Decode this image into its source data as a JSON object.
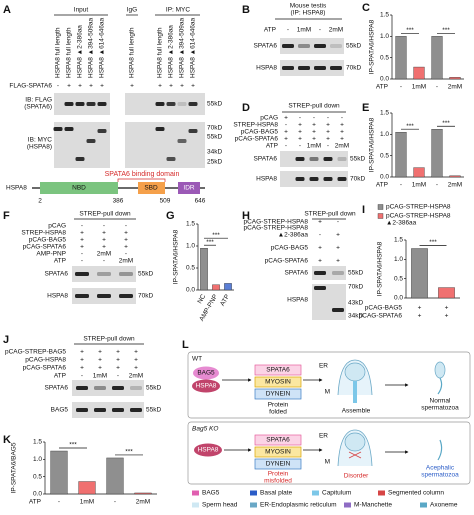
{
  "figure": {
    "A": {
      "label": "A",
      "input": "Input",
      "igg": "IgG",
      "ip": "IP: MYC",
      "lanes": [
        "HSPA8 full length",
        "HSPA8 full length",
        "HSPA8 ▲2-386aa",
        "HSPA8 ▲394-509aa",
        "HSPA8 ▲614-646aa",
        "HSPA8 full length",
        "HSPA8 full length",
        "HSPA8 ▲2-386aa",
        "HSPA8 ▲394-509aa",
        "HSPA8 ▲614-646aa"
      ],
      "rows": [
        {
          "label": "FLAG-SPATA6",
          "cells": [
            "-",
            "+",
            "+",
            "+",
            "+",
            "+",
            "+",
            "+",
            "+",
            "+"
          ]
        }
      ],
      "ib_flag": [
        "IB: FLAG",
        "(SPATA6)"
      ],
      "ib_myc": [
        "IB: MYC",
        "(HSPA8)"
      ],
      "markers_top": [
        "55kD"
      ],
      "markers_bottom": [
        "70kD",
        "55kD",
        "34kD",
        "25kD"
      ],
      "domain": {
        "title": "SPATA6 binding domain",
        "protein": "HSPA8",
        "parts": [
          "NBD",
          "SBD",
          "IDR"
        ],
        "positions": [
          2,
          386,
          509,
          646
        ]
      }
    },
    "B": {
      "label": "B",
      "title": [
        "Mouse testis",
        "(IP: HSPA8)"
      ],
      "rows": [
        {
          "label": "ATP",
          "cells": [
            "-",
            "1mM",
            "-",
            "2mM"
          ]
        }
      ],
      "blots": [
        "SPATA6",
        "HSPA8"
      ],
      "markers": [
        "55kD",
        "70kD"
      ]
    },
    "D": {
      "label": "D",
      "title": "STREP-pull down",
      "rows": [
        {
          "label": "pCAG",
          "cells": [
            "+",
            "-",
            "-",
            "-",
            "-"
          ]
        },
        {
          "label": "STREP-HSPA8",
          "cells": [
            "-",
            "+",
            "+",
            "+",
            "+"
          ]
        },
        {
          "label": "pCAG-BAG5",
          "cells": [
            "+",
            "+",
            "+",
            "+",
            "+"
          ]
        },
        {
          "label": "pCAG-SPATA6",
          "cells": [
            "+",
            "+",
            "+",
            "+",
            "+"
          ]
        },
        {
          "label": "ATP",
          "cells": [
            "-",
            "-",
            "1mM",
            "-",
            "2mM"
          ]
        }
      ],
      "blots": [
        "SPATA6",
        "HSPA8"
      ],
      "markers": [
        "55kD",
        "70kD"
      ]
    },
    "F": {
      "label": "F",
      "title": "STREP-pull down",
      "rows": [
        {
          "label": "pCAG",
          "cells": [
            "-",
            "-",
            "-"
          ]
        },
        {
          "label": "STREP-HSPA8",
          "cells": [
            "+",
            "+",
            "+"
          ]
        },
        {
          "label": "pCAG-BAG5",
          "cells": [
            "+",
            "+",
            "+"
          ]
        },
        {
          "label": "pCAG-SPATA6",
          "cells": [
            "+",
            "+",
            "+"
          ]
        },
        {
          "label": "AMP-PNP",
          "cells": [
            "-",
            "2mM",
            "-"
          ]
        },
        {
          "label": "ATP",
          "cells": [
            "-",
            "-",
            "2mM"
          ]
        }
      ],
      "blots": [
        "SPATA6",
        "HSPA8"
      ],
      "markers": [
        "55kD",
        "70kD"
      ]
    },
    "H": {
      "label": "H",
      "title": "STREP-pull down",
      "rows": [
        {
          "label": "pCAG-STREP-HSPA8",
          "cells": [
            "+",
            "-"
          ]
        },
        {
          "label": [
            "pCAG-STREP-HSPA8",
            "▲2-386aa"
          ],
          "cells": [
            "-",
            "+"
          ]
        },
        {
          "label": "pCAG-BAG5",
          "cells": [
            "+",
            "+"
          ]
        },
        {
          "label": "pCAG-SPATA6",
          "cells": [
            "+",
            "+"
          ]
        }
      ],
      "blots": [
        "SPATA6",
        "HSPA8"
      ],
      "markers": [
        "55kD",
        "70kD",
        "43kD",
        "34kD"
      ]
    },
    "J": {
      "label": "J",
      "title": "STREP-pull down",
      "rows": [
        {
          "label": "pCAG-STREP-BAG5",
          "cells": [
            "+",
            "+",
            "+",
            "+"
          ]
        },
        {
          "label": "pCAG-HSPA8",
          "cells": [
            "+",
            "+",
            "+",
            "+"
          ]
        },
        {
          "label": "pCAG-SPATA6",
          "cells": [
            "+",
            "+",
            "+",
            "+"
          ]
        },
        {
          "label": "ATP",
          "cells": [
            "-",
            "1mM",
            "-",
            "2mM"
          ]
        }
      ],
      "blots": [
        "SPATA6",
        "BAG5"
      ],
      "markers": [
        "55kD",
        "55kD"
      ]
    },
    "L": {
      "label": "L",
      "wt": {
        "tag": "WT",
        "bag5": "BAG5",
        "hspa8": "HSPA8",
        "proteins": [
          "SPATA6",
          "MYOSIN",
          "DYNEIN"
        ],
        "state": [
          "Protein",
          "folded"
        ],
        "er": "ER",
        "m": "M",
        "step": "Assemble",
        "result": [
          "Normal",
          "spermatozoa"
        ]
      },
      "ko": {
        "tag": "Bag5 KO",
        "hspa8": "HSPA8",
        "proteins": [
          "SPATA6",
          "MYOSIN",
          "DYNEIN"
        ],
        "state": [
          "Protein",
          "misfolded"
        ],
        "er": "ER",
        "m": "M",
        "step": "Disorder",
        "result": [
          "Acephalic",
          "spermatozoa"
        ]
      },
      "legend": [
        "BAG5",
        "Basal plate",
        "Capitulum",
        "Segmented column",
        "Sperm head",
        "ER-Endoplasmic reticulum",
        "M-Manchette",
        "Axoneme"
      ]
    }
  },
  "chart_data": [
    {
      "type": "bar",
      "panel": "C",
      "y_label": "IP-SPATA6/HSPA8",
      "x_label": "ATP",
      "categories": [
        "-",
        "1mM",
        "-",
        "2mM"
      ],
      "values": [
        1.0,
        0.28,
        1.0,
        0.04
      ],
      "colors": [
        "#8f8f8f",
        "#f07070",
        "#8f8f8f",
        "#f07070"
      ],
      "ylim": [
        0,
        1.5
      ],
      "yticks": [
        {
          "value": 0,
          "label": "0.0"
        },
        0.5,
        {
          "value": 1,
          "label": "1.0"
        },
        1.5
      ],
      "annotations": [
        "***",
        "***"
      ]
    },
    {
      "type": "bar",
      "panel": "E",
      "y_label": "IP-SPATA6/HSPA8",
      "x_label": "ATP",
      "categories": [
        "-",
        "1mM",
        "-",
        "2mM"
      ],
      "values": [
        1.05,
        0.22,
        1.12,
        0.03
      ],
      "colors": [
        "#8f8f8f",
        "#f07070",
        "#8f8f8f",
        "#f07070"
      ],
      "ylim": [
        0,
        1.5
      ],
      "yticks": [
        {
          "value": 0,
          "label": "0.0"
        },
        0.5,
        {
          "value": 1,
          "label": "1.0"
        },
        1.5
      ],
      "annotations": [
        "***",
        "***"
      ]
    },
    {
      "type": "bar",
      "panel": "G",
      "y_label": "IP-SPATA6/HSPA8",
      "categories": [
        "NC",
        "AMP-PNP",
        "ATP"
      ],
      "values": [
        0.95,
        0.12,
        0.15
      ],
      "colors": [
        "#8f8f8f",
        "#f07070",
        "#5b7fd6"
      ],
      "ylim": [
        0,
        1.5
      ],
      "yticks": [
        {
          "value": 0,
          "label": "0.0"
        },
        0.5,
        {
          "value": 1,
          "label": "1.0"
        },
        1.5
      ],
      "annotations": [
        "***",
        "***"
      ]
    },
    {
      "type": "bar",
      "panel": "I",
      "y_label": "IP-SPATA6/HSPA8",
      "legend": [
        "pCAG-STREP-HSPA8",
        [
          "pCAG-STREP-HSPA8",
          "▲2-386aa"
        ]
      ],
      "rows": [
        {
          "label": "pCAG-BAG5",
          "cells": [
            "+",
            "+"
          ]
        },
        {
          "label": "pCAG-SPATA6",
          "cells": [
            "+",
            "+"
          ]
        }
      ],
      "values": [
        1.28,
        0.27
      ],
      "colors": [
        "#8f8f8f",
        "#f07070"
      ],
      "ylim": [
        0,
        1.5
      ],
      "yticks": [
        {
          "value": 0,
          "label": "0.0"
        },
        0.5,
        {
          "value": 1,
          "label": "1.0"
        },
        1.5
      ],
      "annotations": [
        "***"
      ]
    },
    {
      "type": "bar",
      "panel": "K",
      "y_label": "IP-SPATA6/BAG5",
      "x_label": "ATP",
      "categories": [
        "-",
        "1mM",
        "-",
        "2mM"
      ],
      "values": [
        1.24,
        0.36,
        1.04,
        0.03
      ],
      "colors": [
        "#8f8f8f",
        "#f07070",
        "#8f8f8f",
        "#f07070"
      ],
      "ylim": [
        0,
        1.5
      ],
      "yticks": [
        {
          "value": 0,
          "label": "0.0"
        },
        0.5,
        {
          "value": 1,
          "label": "1.0"
        },
        1.5
      ],
      "annotations": [
        "***",
        "***"
      ]
    }
  ]
}
